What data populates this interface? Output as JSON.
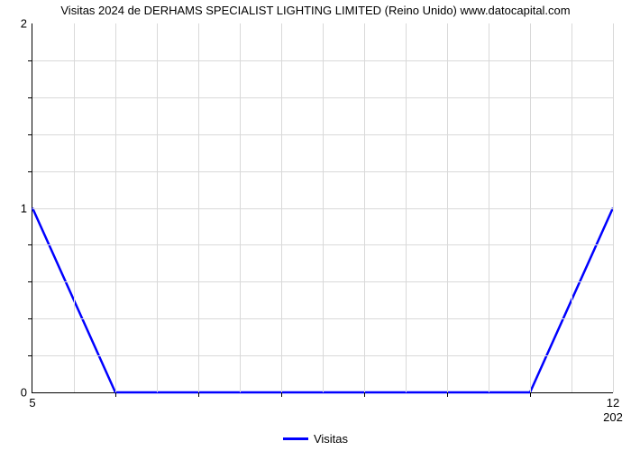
{
  "chart": {
    "type": "line",
    "title": "Visitas 2024 de DERHAMS SPECIALIST LIGHTING LIMITED (Reino Unido) www.datocapital.com",
    "title_fontsize": 13,
    "background_color": "#ffffff",
    "grid_color": "#d9d9d9",
    "axis_color": "#000000",
    "series": {
      "label": "Visitas",
      "color": "#0000ff",
      "line_width": 2.5,
      "x": [
        5,
        6,
        7,
        8,
        9,
        10,
        11,
        12
      ],
      "y": [
        1,
        0,
        0,
        0,
        0,
        0,
        0,
        1
      ]
    },
    "y_axis": {
      "lim": [
        0,
        2
      ],
      "major_ticks": [
        0,
        1,
        2
      ],
      "minor_per_major": 4,
      "label_fontsize": 13
    },
    "x_axis": {
      "lim": [
        5,
        12
      ],
      "label_left": "5",
      "label_right": "12",
      "label_right_below": "202",
      "minor_ticks_count": 7,
      "grid_divisions": 14,
      "label_fontsize": 13
    },
    "legend": {
      "position": "bottom-center",
      "fontsize": 13
    }
  }
}
